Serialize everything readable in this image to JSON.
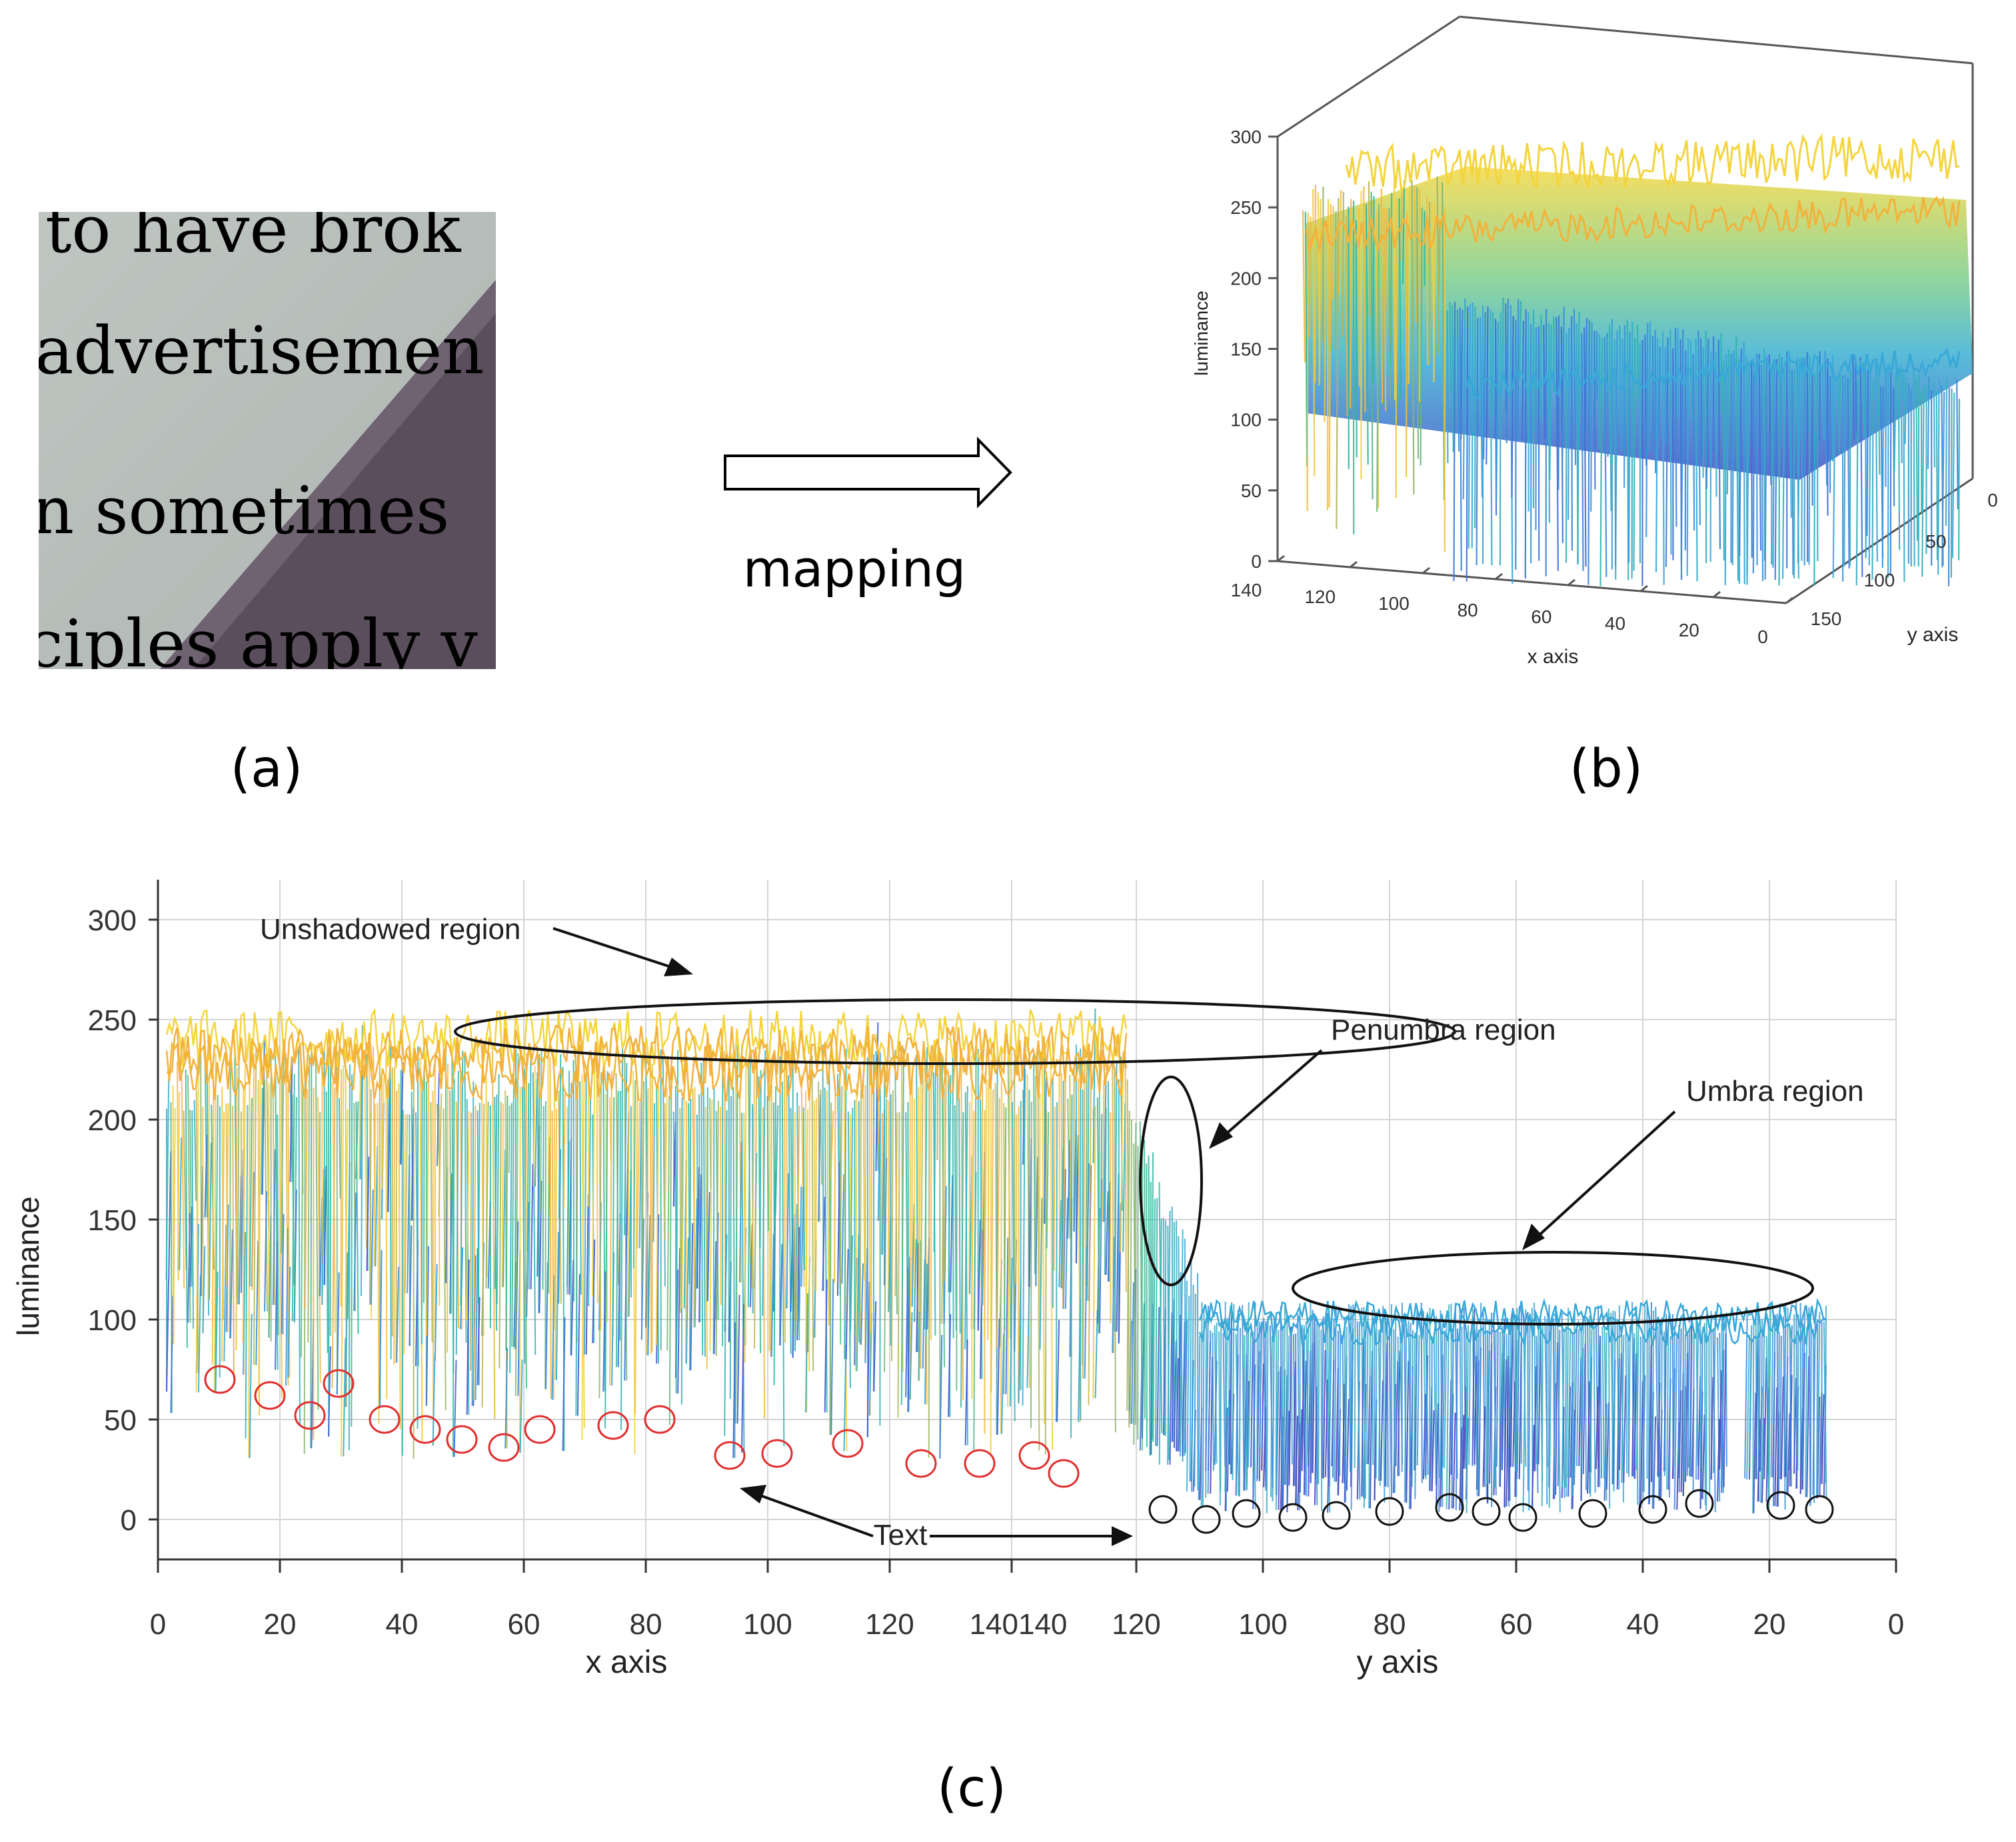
{
  "panel_a": {
    "label": "(a)",
    "text_lines": [
      "to have brok",
      "advertisemen",
      "n sometimes",
      "ciples apply v"
    ]
  },
  "arrow": {
    "label": "mapping"
  },
  "panel_b": {
    "label": "(b)"
  },
  "panel_c": {
    "label": "(c)"
  },
  "colors": {
    "yellow": "#f4d43c",
    "orange": "#f2b23c",
    "green": "#2eb89a",
    "cyan": "#38a8d8",
    "blue": "#3f5fd6",
    "purple": "#4a3fb8",
    "red_circle": "#e03030",
    "shadow": "#5b4e5c",
    "paper": "#c9cfcb"
  },
  "chart_data": [
    {
      "type": "surface3d",
      "panel": "(b)",
      "zlabel": "luminance",
      "xlabel": "x axis",
      "ylabel": "y axis",
      "zlim": [
        0,
        300
      ],
      "zticks": [
        "0",
        "50",
        "100",
        "150",
        "200",
        "250",
        "300"
      ],
      "xticks": [
        "140",
        "120",
        "100",
        "80",
        "60",
        "40",
        "20",
        "0"
      ],
      "yticks": [
        "0",
        "50",
        "100",
        "150"
      ],
      "description_values": {
        "unshadowed_luminance": 220,
        "umbra_luminance": 100
      }
    },
    {
      "type": "line",
      "panel": "(c)",
      "ylabel": "luminance",
      "xlabel_left": "x axis",
      "xlabel_right": "y axis",
      "ylim": [
        -15,
        320
      ],
      "yticks": [
        "300",
        "250",
        "200",
        "150",
        "100",
        "50",
        "0"
      ],
      "xticks": [
        "0",
        "20",
        "40",
        "60",
        "80",
        "100",
        "120",
        "140140",
        "120",
        "100",
        "80",
        "60",
        "40",
        "20",
        "0"
      ],
      "annotations": {
        "unshadowed": "Unshadowed region",
        "penumbra": "Penumbra region",
        "umbra": "Umbra region",
        "text": "Text"
      },
      "levels": {
        "unshadowed_top": 220,
        "penumbra": 160,
        "umbra_top": 100
      },
      "text_minima_red": [
        70,
        62,
        52,
        68,
        50,
        45,
        40,
        36,
        45,
        47,
        50,
        32,
        33,
        38,
        28,
        28,
        32,
        23
      ],
      "text_minima_black": [
        5,
        0,
        3,
        1,
        2,
        4,
        6,
        4,
        1,
        3,
        5,
        8,
        7,
        5
      ]
    }
  ]
}
